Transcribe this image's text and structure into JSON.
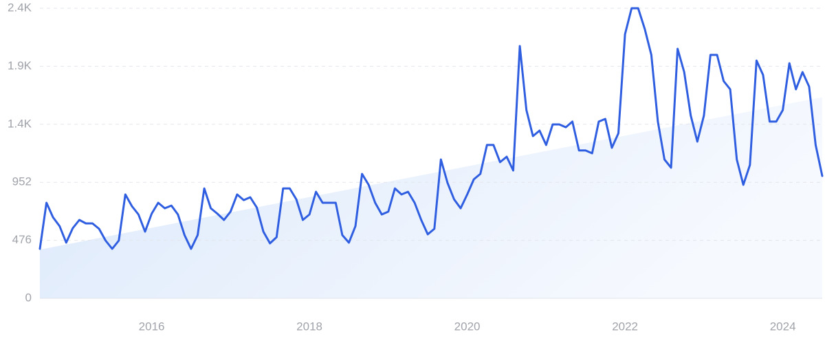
{
  "chart_data": {
    "type": "line",
    "categories": [
      null,
      null,
      null,
      null,
      null,
      null,
      null,
      null,
      null,
      null,
      null,
      null,
      null,
      null,
      null,
      null,
      null,
      "2016",
      null,
      null,
      null,
      null,
      null,
      null,
      null,
      null,
      null,
      null,
      null,
      null,
      null,
      null,
      null,
      null,
      null,
      null,
      null,
      null,
      null,
      null,
      null,
      "2018",
      null,
      null,
      null,
      null,
      null,
      null,
      null,
      null,
      null,
      null,
      null,
      null,
      null,
      null,
      null,
      null,
      null,
      null,
      null,
      null,
      null,
      null,
      null,
      "2020",
      null,
      null,
      null,
      null,
      null,
      null,
      null,
      null,
      null,
      null,
      null,
      null,
      null,
      null,
      null,
      null,
      null,
      null,
      null,
      null,
      null,
      null,
      null,
      "2022",
      null,
      null,
      null,
      null,
      null,
      null,
      null,
      null,
      null,
      null,
      null,
      null,
      null,
      null,
      null,
      null,
      null,
      null,
      null,
      null,
      null,
      null,
      null,
      "2024",
      null,
      null,
      null,
      null,
      null,
      null
    ],
    "series": [
      {
        "color": "#2f5ee0",
        "values": [
          406,
          784,
          665,
          592,
          457,
          575,
          643,
          615,
          615,
          570,
          474,
          406,
          474,
          852,
          756,
          688,
          547,
          694,
          784,
          739,
          761,
          688,
          519,
          406,
          519,
          902,
          739,
          694,
          643,
          711,
          852,
          806,
          829,
          744,
          547,
          451,
          502,
          902,
          902,
          812,
          643,
          688,
          874,
          784,
          784,
          784,
          519,
          457,
          592,
          1021,
          931,
          784,
          688,
          711,
          902,
          852,
          874,
          784,
          643,
          525,
          570,
          1139,
          948,
          812,
          739,
          852,
          976,
          1021,
          1258,
          1258,
          1117,
          1162,
          1049,
          2070,
          1545,
          1331,
          1376,
          1258,
          1427,
          1427,
          1404,
          1450,
          1213,
          1213,
          1190,
          1450,
          1472,
          1235,
          1354,
          2166,
          2380,
          2380,
          2211,
          1997,
          1450,
          1139,
          1072,
          2047,
          1856,
          1500,
          1286,
          1500,
          1997,
          1997,
          1782,
          1715,
          1139,
          931,
          1094,
          1951,
          1833,
          1450,
          1450,
          1545,
          1929,
          1715,
          1856,
          1737,
          1258,
          1004
        ]
      }
    ],
    "trend": [
      400,
      1650
    ],
    "ylim": [
      0,
      2380
    ],
    "yticks": [
      0,
      476,
      952,
      {
        "value": 1428,
        "label": "1.4K"
      },
      {
        "value": 1904,
        "label": "1.9K"
      },
      {
        "value": 2380,
        "label": "2.4K"
      }
    ],
    "grid": true
  }
}
